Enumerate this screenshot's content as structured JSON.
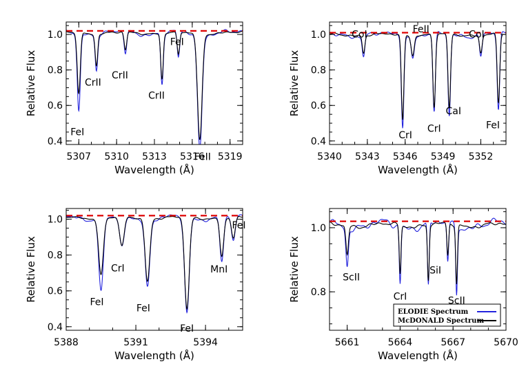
{
  "colors": {
    "elodie": "#2222dd",
    "mcdonald": "#000000",
    "continuum": "#dd0000"
  },
  "chart_data": [
    {
      "type": "line",
      "xlabel": "Wavelength (Å)",
      "ylabel": "Relative Flux",
      "xlim": [
        5306,
        5320
      ],
      "ylim": [
        0.38,
        1.07
      ],
      "xticks": [
        5307,
        5310,
        5313,
        5316,
        5319
      ],
      "yticks": [
        0.4,
        0.6,
        0.8,
        1.0
      ],
      "continuum_level": 1.02,
      "lines": [
        {
          "label": "FeI",
          "wavelength": 5307.0,
          "elodie_depth": 0.58,
          "mcdonald_depth": 0.68,
          "width": 0.12
        },
        {
          "label": "CrII",
          "wavelength": 5308.4,
          "elodie_depth": 0.82,
          "mcdonald_depth": 0.84,
          "width": 0.1
        },
        {
          "label": "CrII",
          "wavelength": 5310.7,
          "elodie_depth": 0.9,
          "mcdonald_depth": 0.92,
          "width": 0.1
        },
        {
          "label": "CrII",
          "wavelength": 5313.6,
          "elodie_depth": 0.73,
          "mcdonald_depth": 0.76,
          "width": 0.1
        },
        {
          "label": "FeI",
          "wavelength": 5314.9,
          "elodie_depth": 0.87,
          "mcdonald_depth": 0.89,
          "width": 0.1
        },
        {
          "label": "FeII",
          "wavelength": 5316.6,
          "elodie_depth": 0.37,
          "mcdonald_depth": 0.42,
          "width": 0.18
        }
      ]
    },
    {
      "type": "line",
      "xlabel": "Wavelength (Å)",
      "ylabel": "Relative Flux",
      "xlim": [
        5340,
        5354
      ],
      "ylim": [
        0.38,
        1.07
      ],
      "xticks": [
        5340,
        5343,
        5346,
        5349,
        5352
      ],
      "yticks": [
        0.4,
        0.6,
        0.8,
        1.0
      ],
      "continuum_level": 1.01,
      "lines": [
        {
          "label": "CoI",
          "wavelength": 5342.7,
          "elodie_depth": 0.89,
          "mcdonald_depth": 0.91,
          "width": 0.1
        },
        {
          "label": "FeII",
          "wavelength": 5346.6,
          "elodie_depth": 0.88,
          "mcdonald_depth": 0.9,
          "width": 0.12
        },
        {
          "label": "CrI",
          "wavelength": 5345.8,
          "elodie_depth": 0.5,
          "mcdonald_depth": 0.53,
          "width": 0.1
        },
        {
          "label": "CrI",
          "wavelength": 5348.3,
          "elodie_depth": 0.56,
          "mcdonald_depth": 0.6,
          "width": 0.1
        },
        {
          "label": "CaI",
          "wavelength": 5349.5,
          "elodie_depth": 0.55,
          "mcdonald_depth": 0.59,
          "width": 0.1
        },
        {
          "label": "CoI",
          "wavelength": 5352.0,
          "elodie_depth": 0.89,
          "mcdonald_depth": 0.91,
          "width": 0.1
        },
        {
          "label": "FeI",
          "wavelength": 5353.4,
          "elodie_depth": 0.58,
          "mcdonald_depth": 0.62,
          "width": 0.1
        }
      ]
    },
    {
      "type": "line",
      "xlabel": "Wavelength (Å)",
      "ylabel": "Relative Flux",
      "xlim": [
        5388,
        5395.6
      ],
      "ylim": [
        0.38,
        1.06
      ],
      "xticks": [
        5388,
        5391,
        5394
      ],
      "yticks": [
        0.4,
        0.6,
        0.8,
        1.0
      ],
      "continuum_level": 1.02,
      "lines": [
        {
          "label": "FeI",
          "wavelength": 5389.5,
          "elodie_depth": 0.62,
          "mcdonald_depth": 0.7,
          "width": 0.1
        },
        {
          "label": "CrI",
          "wavelength": 5390.4,
          "elodie_depth": 0.84,
          "mcdonald_depth": 0.86,
          "width": 0.1
        },
        {
          "label": "FeI",
          "wavelength": 5391.5,
          "elodie_depth": 0.64,
          "mcdonald_depth": 0.67,
          "width": 0.1
        },
        {
          "label": "FeI",
          "wavelength": 5393.2,
          "elodie_depth": 0.48,
          "mcdonald_depth": 0.51,
          "width": 0.1
        },
        {
          "label": "MnI",
          "wavelength": 5394.7,
          "elodie_depth": 0.78,
          "mcdonald_depth": 0.8,
          "width": 0.08
        },
        {
          "label": "FeI",
          "wavelength": 5395.2,
          "elodie_depth": 0.88,
          "mcdonald_depth": 0.9,
          "width": 0.08
        }
      ]
    },
    {
      "type": "line",
      "xlabel": "Wavelength (Å)",
      "ylabel": "Relative Flux",
      "xlim": [
        5660,
        5670
      ],
      "ylim": [
        0.68,
        1.06
      ],
      "xticks": [
        5661,
        5664,
        5667,
        5670
      ],
      "yticks": [
        0.8,
        1.0
      ],
      "continuum_level": 1.02,
      "lines": [
        {
          "label": "ScII",
          "wavelength": 5661.0,
          "elodie_depth": 0.9,
          "mcdonald_depth": 0.93,
          "width": 0.07
        },
        {
          "label": "CrI",
          "wavelength": 5664.0,
          "elodie_depth": 0.84,
          "mcdonald_depth": 0.87,
          "width": 0.05
        },
        {
          "label": "SiI",
          "wavelength": 5665.6,
          "elodie_depth": 0.82,
          "mcdonald_depth": 0.85,
          "width": 0.05
        },
        {
          "label": "SiI",
          "wavelength": 5666.7,
          "elodie_depth": 0.9,
          "mcdonald_depth": 0.92,
          "width": 0.05
        },
        {
          "label": "ScII",
          "wavelength": 5667.2,
          "elodie_depth": 0.81,
          "mcdonald_depth": 0.84,
          "width": 0.05
        }
      ],
      "legend": {
        "placement": "bottom-right",
        "entries": [
          {
            "name": "ELODIE Spectrum",
            "color": "#2222dd"
          },
          {
            "name": "McDONALD Spectrum",
            "color": "#000000"
          }
        ]
      }
    }
  ]
}
